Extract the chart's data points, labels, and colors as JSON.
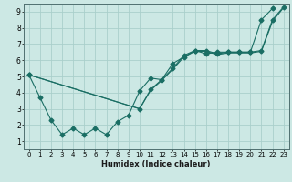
{
  "xlabel": "Humidex (Indice chaleur)",
  "xlim": [
    -0.5,
    23.5
  ],
  "ylim": [
    0.5,
    9.5
  ],
  "xticks": [
    0,
    1,
    2,
    3,
    4,
    5,
    6,
    7,
    8,
    9,
    10,
    11,
    12,
    13,
    14,
    15,
    16,
    17,
    18,
    19,
    20,
    21,
    22,
    23
  ],
  "yticks": [
    1,
    2,
    3,
    4,
    5,
    6,
    7,
    8,
    9
  ],
  "bg_color": "#cce8e4",
  "grid_color": "#aacfcb",
  "line_color": "#1a6e64",
  "line1_x": [
    0,
    1,
    2,
    3,
    4,
    5,
    6,
    7,
    8,
    9,
    10,
    11,
    12,
    13,
    14,
    15,
    16,
    17,
    18,
    19,
    20,
    21,
    22
  ],
  "line1_y": [
    5.1,
    3.7,
    2.3,
    1.4,
    1.8,
    1.4,
    1.8,
    1.4,
    2.2,
    2.6,
    4.1,
    4.9,
    4.8,
    5.8,
    6.2,
    6.6,
    6.4,
    6.5,
    6.5,
    6.5,
    6.5,
    8.5,
    9.2
  ],
  "line2_x": [
    0,
    10,
    11,
    12,
    13,
    14,
    15,
    16,
    17,
    18,
    19,
    20,
    21,
    22,
    23
  ],
  "line2_y": [
    5.1,
    3.0,
    4.2,
    4.8,
    5.5,
    6.3,
    6.6,
    6.6,
    6.4,
    6.5,
    6.5,
    6.5,
    6.6,
    8.5,
    9.3
  ],
  "line3_x": [
    0,
    10,
    11,
    12,
    13,
    14,
    15,
    16,
    17,
    18,
    19,
    20,
    21,
    22,
    23
  ],
  "line3_y": [
    5.1,
    3.0,
    4.15,
    4.75,
    5.45,
    6.2,
    6.55,
    6.55,
    6.35,
    6.45,
    6.45,
    6.45,
    6.55,
    8.4,
    9.25
  ]
}
